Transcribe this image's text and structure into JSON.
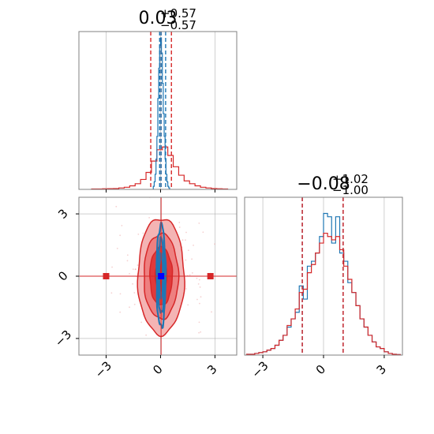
{
  "colors": {
    "red": "#d62728",
    "blue": "#1f77b4",
    "red_fill_outer": "#f4b4b4",
    "red_fill_mid": "#ee8080",
    "red_fill_inner": "#e03a3a",
    "grid": "#b0b0b0",
    "frame": "#808080",
    "marker_blue": "#0000ff"
  },
  "chart_data": [
    {
      "type": "histogram",
      "panel": "top-left",
      "param_index": 0,
      "title_value": "0.03",
      "title_plus": "+0.57",
      "title_minus": "−0.57",
      "xlim": [
        -4.5,
        4.2
      ],
      "x_ticks": [
        -3,
        0,
        3
      ],
      "tick_labels_shown": false,
      "grid": true,
      "series": [
        {
          "color": "#d62728",
          "quantile_lines": [
            -0.54,
            0.03,
            0.6
          ],
          "bins_x": [
            -3.8,
            -3.5,
            -3.2,
            -2.9,
            -2.6,
            -2.3,
            -2.0,
            -1.7,
            -1.4,
            -1.1,
            -0.8,
            -0.5,
            -0.2,
            0.1,
            0.4,
            0.7,
            1.0,
            1.3,
            1.6,
            1.9,
            2.2,
            2.5,
            2.8,
            3.1,
            3.4,
            3.7
          ],
          "counts": [
            0.3,
            0.3,
            0.4,
            0.5,
            0.6,
            1,
            1.5,
            2.5,
            4,
            7,
            12,
            20,
            28,
            30,
            24,
            16,
            10,
            6,
            4,
            2.5,
            1.5,
            1,
            0.6,
            0.4,
            0.3
          ]
        },
        {
          "color": "#1f77b4",
          "quantile_lines": [
            -0.05,
            0.03,
            0.28
          ],
          "bins_x": [
            -0.4,
            -0.35,
            -0.3,
            -0.25,
            -0.2,
            -0.15,
            -0.1,
            -0.05,
            0,
            0.05,
            0.1,
            0.15,
            0.2,
            0.25,
            0.3,
            0.35,
            0.4,
            0.45,
            0.5
          ],
          "counts": [
            2,
            5,
            10,
            20,
            35,
            60,
            80,
            95,
            100,
            90,
            70,
            50,
            35,
            20,
            10,
            5,
            2,
            1
          ]
        }
      ]
    },
    {
      "type": "contour",
      "panel": "bottom-left",
      "xlim": [
        -4.5,
        4.2
      ],
      "ylim": [
        -3.8,
        3.8
      ],
      "x_ticks": [
        -3,
        0,
        3
      ],
      "x_tick_labels": [
        "−3",
        "0",
        "3"
      ],
      "y_ticks": [
        -3,
        0,
        3
      ],
      "y_tick_labels": [
        "−3",
        "0",
        "3"
      ],
      "grid": true,
      "red_levels": [
        {
          "sx": 1.28,
          "sy": 2.8
        },
        {
          "sx": 0.95,
          "sy": 2.05
        },
        {
          "sx": 0.62,
          "sy": 1.4
        },
        {
          "sx": 0.35,
          "sy": 0.75
        }
      ],
      "blue_levels": [
        {
          "sx": 0.25,
          "sy": 2.45
        },
        {
          "sx": 0.17,
          "sy": 1.8
        },
        {
          "sx": 0.1,
          "sy": 1.1
        }
      ],
      "red_markers": [
        {
          "x": -3.0,
          "y": 0.0
        },
        {
          "x": 2.75,
          "y": 0.0
        }
      ],
      "blue_marker": {
        "x": 0.03,
        "y": 0.0
      },
      "center": {
        "x": 0.03,
        "y": 0.0
      }
    },
    {
      "type": "histogram",
      "panel": "bottom-right",
      "param_index": 1,
      "title_value": "−0.08",
      "title_plus": "+1.02",
      "title_minus": "−1.00",
      "xlim": [
        -3.9,
        3.9
      ],
      "x_ticks": [
        -3,
        0,
        3
      ],
      "x_tick_labels": [
        "−3",
        "0",
        "3"
      ],
      "grid": true,
      "series": [
        {
          "color": "#1f77b4",
          "quantile_lines": [
            -1.05,
            0.97
          ],
          "bins_x": [
            -3.8,
            -3.6,
            -3.4,
            -3.2,
            -3.0,
            -2.8,
            -2.6,
            -2.4,
            -2.2,
            -2.0,
            -1.8,
            -1.6,
            -1.4,
            -1.2,
            -1.0,
            -0.8,
            -0.6,
            -0.4,
            -0.2,
            0.0,
            0.2,
            0.4,
            0.6,
            0.8,
            1.0,
            1.2,
            1.4,
            1.6,
            1.8,
            2.0,
            2.2,
            2.4,
            2.6,
            2.8,
            3.0,
            3.2,
            3.4,
            3.6,
            3.8
          ],
          "counts": [
            0.5,
            0.5,
            1,
            1.5,
            2,
            3,
            4,
            6,
            9,
            12,
            17,
            22,
            26,
            42,
            34,
            54,
            57,
            62,
            72,
            86,
            84,
            68,
            84,
            62,
            57,
            44,
            38,
            30,
            22,
            17,
            12,
            8,
            5,
            4,
            2,
            1,
            0.5,
            0.3
          ]
        },
        {
          "color": "#d62728",
          "quantile_lines": [
            -1.05,
            0.97
          ],
          "bins_x": [
            -3.8,
            -3.6,
            -3.4,
            -3.2,
            -3.0,
            -2.8,
            -2.6,
            -2.4,
            -2.2,
            -2.0,
            -1.8,
            -1.6,
            -1.4,
            -1.2,
            -1.0,
            -0.8,
            -0.6,
            -0.4,
            -0.2,
            0.0,
            0.2,
            0.4,
            0.6,
            0.8,
            1.0,
            1.2,
            1.4,
            1.6,
            1.8,
            2.0,
            2.2,
            2.4,
            2.6,
            2.8,
            3.0,
            3.2,
            3.4,
            3.6,
            3.8
          ],
          "counts": [
            0.5,
            0.5,
            1,
            1.5,
            2,
            3,
            4,
            6,
            9,
            12,
            18,
            22,
            28,
            38,
            40,
            50,
            55,
            62,
            68,
            74,
            72,
            70,
            72,
            64,
            54,
            46,
            38,
            30,
            22,
            17,
            12,
            8,
            5,
            4,
            2,
            1,
            0.5,
            0.3
          ]
        }
      ]
    }
  ]
}
